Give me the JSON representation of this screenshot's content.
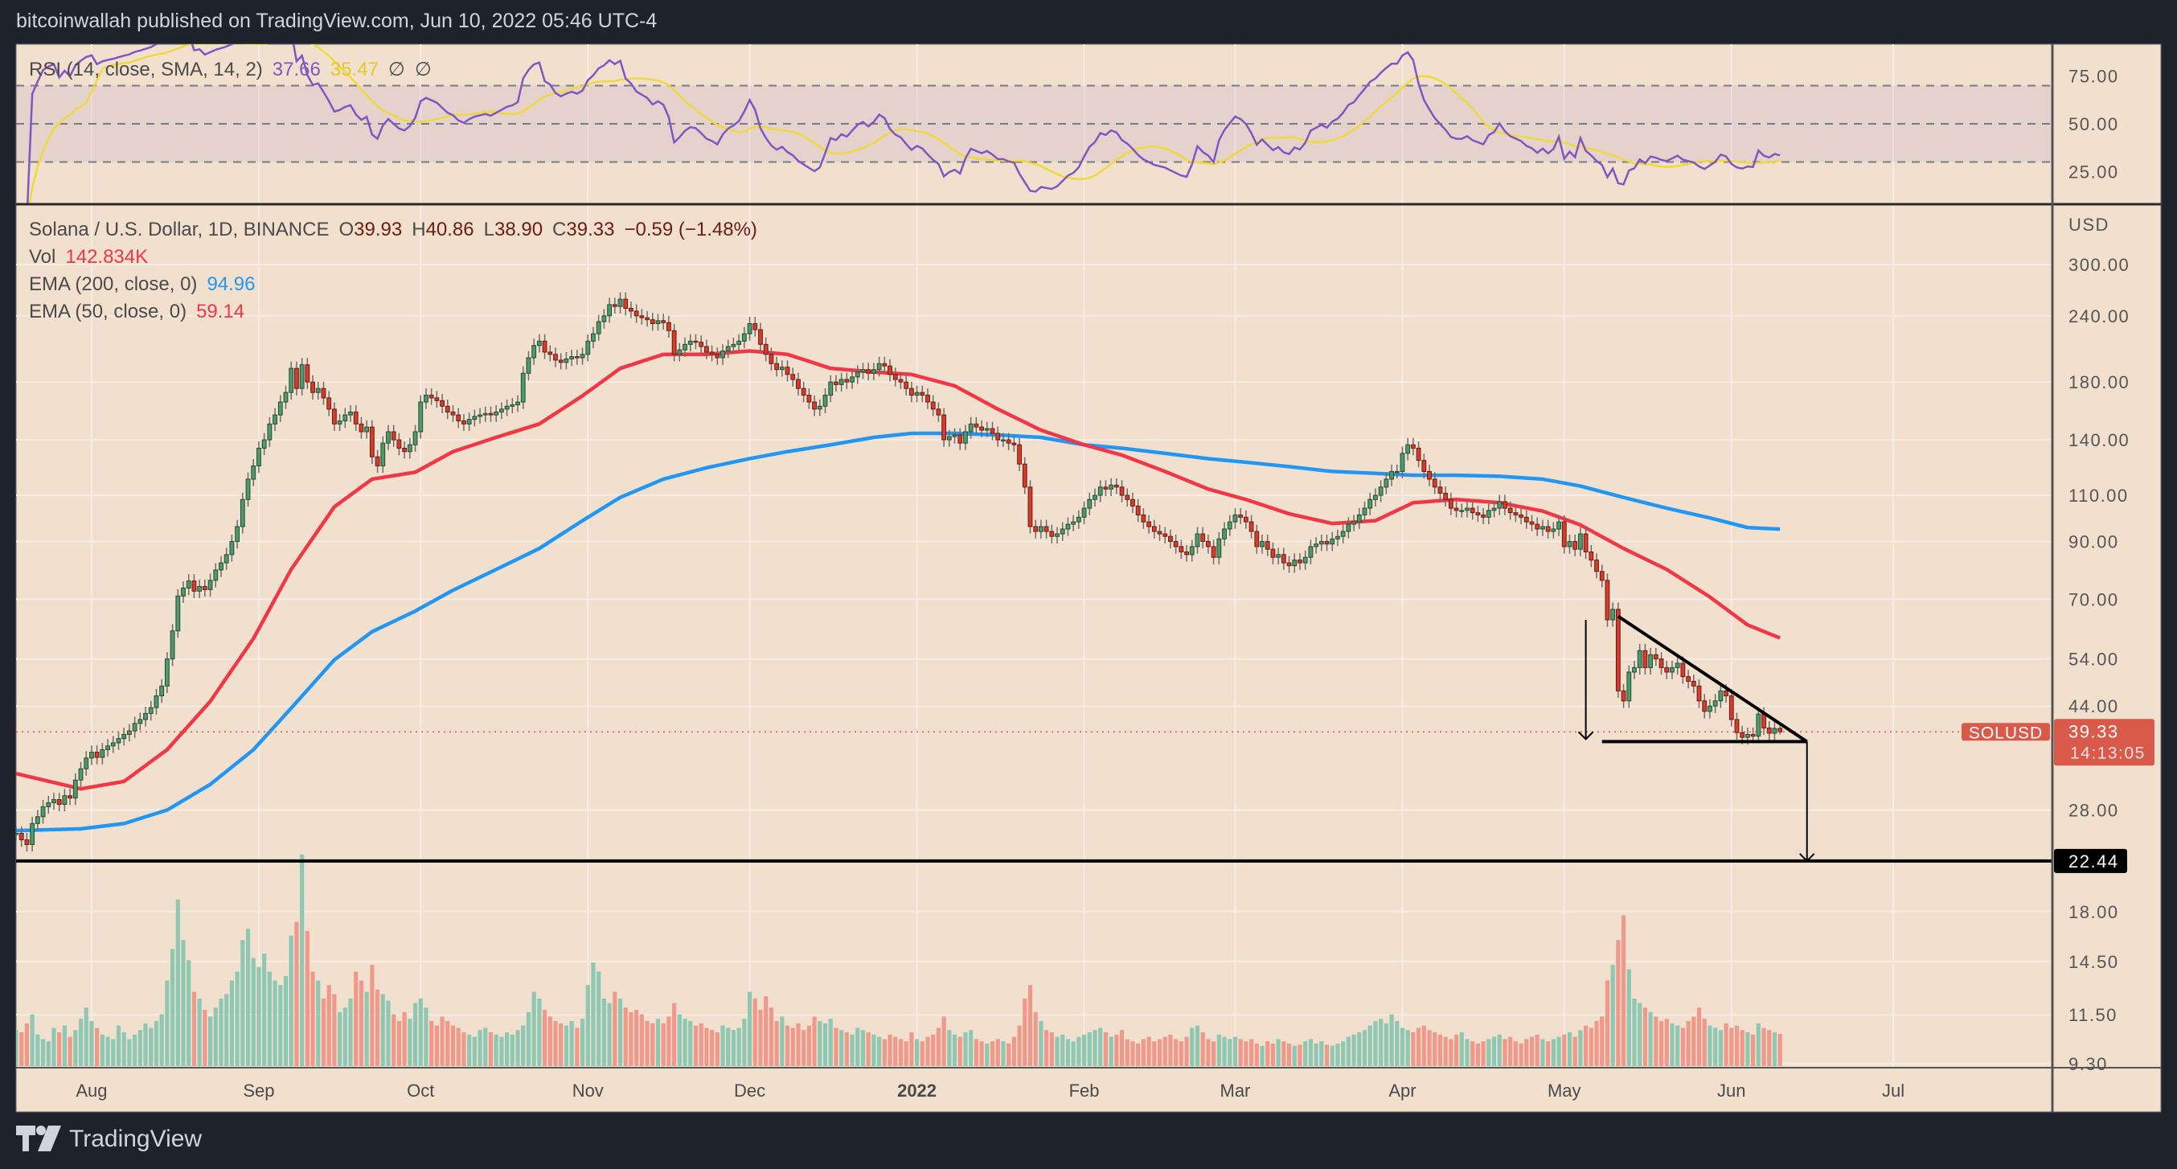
{
  "header": {
    "title": "bitcoinwallah published on TradingView.com, Jun 10, 2022 05:46 UTC-4"
  },
  "logo": {
    "text": "TradingView"
  },
  "rsi_legend": {
    "label": "RSI (14, close, SMA, 14, 2)",
    "rsi_value": "37.66",
    "sma_value": "35.47",
    "extra1": "∅",
    "extra2": "∅"
  },
  "main_legend": {
    "symbol": "Solana / U.S. Dollar, 1D, BINANCE",
    "o_label": "O",
    "o": "39.93",
    "h_label": "H",
    "h": "40.86",
    "l_label": "L",
    "l": "38.90",
    "c_label": "C",
    "c": "39.33",
    "change": "−0.59 (−1.48%)",
    "vol_label": "Vol",
    "vol_value": "142.834K",
    "ema200_label": "EMA (200, close, 0)",
    "ema200_value": "94.96",
    "ema50_label": "EMA (50, close, 0)",
    "ema50_value": "59.14"
  },
  "colors": {
    "background": "#f2e0cf",
    "frame": "#1e222d",
    "up": "#4f9a6a",
    "down": "#d43c2e",
    "vol_up": "#8ec8b2",
    "vol_down": "#f0998b",
    "ema50": "#f23645",
    "ema200": "#2196f3",
    "rsi": "#7e57c2",
    "rsi_sma": "#f0d93a",
    "price_label": "#d9594a"
  },
  "chart_data": {
    "type": "candlestick",
    "symbol": "SOLUSD",
    "scale": "log",
    "grid": true,
    "price_axis": {
      "unit": "USD",
      "ticks": [
        "300.00",
        "240.00",
        "180.00",
        "140.00",
        "110.00",
        "90.00",
        "70.00",
        "54.00",
        "44.00",
        "28.00",
        "18.00",
        "14.50",
        "11.50",
        "9.30"
      ]
    },
    "rsi_axis": {
      "ticks": [
        "75.00",
        "50.00",
        "25.00"
      ],
      "bands": [
        70,
        50,
        30
      ]
    },
    "time_axis": {
      "labels": [
        {
          "label": "Aug",
          "date": "2021-08-01"
        },
        {
          "label": "Sep",
          "date": "2021-09-01"
        },
        {
          "label": "Oct",
          "date": "2021-10-01"
        },
        {
          "label": "Nov",
          "date": "2021-11-01"
        },
        {
          "label": "Dec",
          "date": "2021-12-01"
        },
        {
          "label": "2022",
          "date": "2022-01-01"
        },
        {
          "label": "Feb",
          "date": "2022-02-01"
        },
        {
          "label": "Mar",
          "date": "2022-03-01"
        },
        {
          "label": "Apr",
          "date": "2022-04-01"
        },
        {
          "label": "May",
          "date": "2022-05-01"
        },
        {
          "label": "Jun",
          "date": "2022-06-01"
        },
        {
          "label": "Jul",
          "date": "2022-07-01"
        }
      ]
    },
    "last": {
      "open": 39.93,
      "high": 40.86,
      "low": 38.9,
      "close": 39.33,
      "label": "SOLUSD",
      "price_text": "39.33",
      "countdown": "14:13:05"
    },
    "months": [
      {
        "month": "2021-07",
        "first_day": 18,
        "close": [
          25.3,
          24.6,
          24.1,
          26.4,
          27.2,
          28.4,
          28.9,
          29.3,
          28.7,
          29.8,
          29.5,
          31.9,
          33.5,
          35.1
        ],
        "volume_k": [
          160,
          150,
          190,
          230,
          140,
          120,
          110,
          170,
          150,
          180,
          130,
          160,
          210,
          260
        ]
      },
      {
        "month": "2021-08",
        "first_day": 1,
        "close": [
          36.0,
          35.2,
          36.4,
          37.0,
          37.5,
          38.2,
          38.9,
          39.5,
          40.8,
          41.5,
          42.6,
          43.7,
          46.0,
          48.0,
          54.0,
          61.0,
          71.0,
          73.5,
          75.8,
          72.5,
          74.0,
          73.0,
          76.0,
          79.5,
          82.0,
          85.0,
          90.0,
          96.0,
          108.0,
          118.0,
          125.0
        ],
        "volume_k": [
          200,
          170,
          140,
          130,
          120,
          180,
          150,
          120,
          140,
          160,
          190,
          170,
          200,
          230,
          380,
          520,
          740,
          560,
          470,
          330,
          300,
          250,
          220,
          260,
          300,
          320,
          380,
          420,
          560,
          610,
          480
        ]
      },
      {
        "month": "2021-09",
        "first_day": 1,
        "close": [
          135,
          140,
          150,
          156,
          165,
          172,
          191,
          175,
          194,
          180,
          172,
          175,
          168,
          160,
          150,
          152,
          156,
          158,
          150,
          145,
          148,
          130,
          125,
          138,
          145,
          140,
          135,
          133,
          137,
          145
        ],
        "volume_k": [
          440,
          500,
          420,
          380,
          360,
          400,
          580,
          640,
          940,
          600,
          420,
          380,
          300,
          360,
          320,
          240,
          260,
          300,
          420,
          380,
          330,
          450,
          340,
          320,
          290,
          230,
          200,
          240,
          210,
          280
        ]
      },
      {
        "month": "2021-10",
        "first_day": 1,
        "close": [
          165,
          170,
          168,
          166,
          162,
          158,
          156,
          152,
          150,
          153,
          155,
          156,
          157,
          156,
          158,
          160,
          162,
          163,
          165,
          187,
          200,
          211,
          215,
          205,
          203,
          198,
          196,
          199,
          201,
          200,
          203
        ],
        "volume_k": [
          300,
          260,
          200,
          180,
          220,
          200,
          180,
          170,
          150,
          140,
          130,
          160,
          170,
          150,
          140,
          130,
          150,
          140,
          160,
          180,
          240,
          330,
          300,
          250,
          220,
          200,
          190,
          180,
          200,
          170,
          210
        ]
      },
      {
        "month": "2021-11",
        "first_day": 1,
        "close": [
          215,
          222,
          234,
          240,
          252,
          250,
          258,
          248,
          245,
          240,
          238,
          236,
          232,
          235,
          233,
          225,
          203,
          207,
          212,
          215,
          214,
          210,
          205,
          203,
          200,
          206,
          210,
          212,
          215,
          222
        ],
        "volume_k": [
          360,
          460,
          420,
          300,
          280,
          330,
          300,
          260,
          240,
          250,
          230,
          200,
          190,
          210,
          190,
          220,
          280,
          230,
          210,
          200,
          180,
          190,
          170,
          160,
          150,
          180,
          170,
          160,
          170,
          210
        ]
      },
      {
        "month": "2021-12",
        "first_day": 1,
        "close": [
          232,
          226,
          212,
          203,
          195,
          190,
          192,
          186,
          182,
          175,
          170,
          165,
          160,
          162,
          170,
          180,
          178,
          182,
          180,
          184,
          188,
          190,
          187,
          190,
          195,
          193,
          186,
          182,
          180,
          175,
          170
        ],
        "volume_k": [
          330,
          300,
          250,
          310,
          260,
          200,
          220,
          180,
          170,
          190,
          160,
          180,
          220,
          200,
          190,
          210,
          170,
          160,
          150,
          140,
          170,
          160,
          150,
          140,
          130,
          120,
          140,
          130,
          120,
          110,
          150
        ]
      },
      {
        "month": "2022-01",
        "first_day": 1,
        "close": [
          172,
          170,
          165,
          160,
          156,
          140,
          142,
          143,
          138,
          145,
          150,
          148,
          146,
          147,
          144,
          140,
          140,
          138,
          137,
          126,
          114,
          96,
          94,
          96,
          94,
          92,
          93,
          95,
          97,
          98,
          100
        ],
        "volume_k": [
          120,
          110,
          130,
          140,
          170,
          220,
          160,
          140,
          130,
          150,
          160,
          120,
          110,
          100,
          110,
          120,
          110,
          100,
          130,
          180,
          300,
          360,
          240,
          200,
          160,
          150,
          130,
          140,
          120,
          110,
          130
        ]
      },
      {
        "month": "2022-02",
        "first_day": 1,
        "close": [
          104,
          108,
          110,
          114,
          113,
          115,
          114,
          110,
          108,
          105,
          101,
          98,
          96,
          94,
          93,
          92,
          90,
          88,
          86,
          85,
          88,
          93,
          90,
          88,
          84,
          91,
          95,
          98
        ],
        "volume_k": [
          140,
          150,
          160,
          170,
          150,
          130,
          140,
          160,
          120,
          110,
          100,
          120,
          130,
          110,
          120,
          130,
          140,
          120,
          110,
          130,
          170,
          180,
          150,
          120,
          110,
          140,
          130,
          120
        ]
      },
      {
        "month": "2022-03",
        "first_day": 1,
        "close": [
          101,
          100,
          98,
          94,
          88,
          90,
          87,
          84,
          85,
          82,
          81,
          83,
          82,
          84,
          88,
          89,
          90,
          89,
          91,
          92,
          94,
          97,
          98,
          101,
          104,
          108,
          110,
          114,
          118,
          122,
          122
        ],
        "volume_k": [
          130,
          120,
          110,
          120,
          100,
          90,
          110,
          100,
          120,
          110,
          100,
          90,
          95,
          110,
          120,
          100,
          110,
          95,
          90,
          100,
          110,
          130,
          140,
          150,
          160,
          180,
          200,
          210,
          190,
          230,
          200
        ]
      },
      {
        "month": "2022-04",
        "first_day": 1,
        "close": [
          132,
          137,
          135,
          128,
          122,
          118,
          114,
          111,
          108,
          104,
          103,
          103,
          104,
          102,
          101,
          100,
          103,
          104,
          107,
          104,
          102,
          101,
          100,
          98,
          97,
          95,
          96,
          94,
          95,
          98
        ],
        "volume_k": [
          170,
          160,
          150,
          170,
          180,
          160,
          150,
          140,
          130,
          120,
          140,
          150,
          120,
          110,
          100,
          110,
          120,
          130,
          140,
          120,
          130,
          110,
          100,
          120,
          130,
          140,
          120,
          110,
          120,
          130
        ]
      },
      {
        "month": "2022-05",
        "first_day": 1,
        "close": [
          88,
          90,
          87,
          93,
          86,
          83,
          79,
          76,
          64,
          67,
          47,
          45,
          51,
          52,
          56,
          52,
          55,
          54,
          52,
          51,
          52,
          53,
          50,
          49,
          48,
          45,
          43,
          44,
          45,
          47,
          46
        ],
        "volume_k": [
          140,
          150,
          130,
          160,
          180,
          170,
          200,
          220,
          380,
          450,
          560,
          670,
          430,
          300,
          280,
          260,
          240,
          220,
          200,
          210,
          190,
          180,
          170,
          200,
          220,
          260,
          210,
          180,
          170,
          160,
          190
        ]
      },
      {
        "month": "2022-06",
        "first_day": 1,
        "close": [
          41.5,
          39.2,
          38.4,
          38.9,
          38.6,
          42.5,
          40.0,
          39.1,
          39.93,
          39.33
        ],
        "volume_k": [
          170,
          180,
          160,
          150,
          140,
          190,
          170,
          160,
          150,
          142.834
        ]
      }
    ],
    "ema50": [
      [
        "2021-07-18",
        32.8
      ],
      [
        "2021-07-30",
        30.7
      ],
      [
        "2021-08-07",
        31.7
      ],
      [
        "2021-08-15",
        36.4
      ],
      [
        "2021-08-23",
        44.9
      ],
      [
        "2021-08-31",
        59.0
      ],
      [
        "2021-09-07",
        79.7
      ],
      [
        "2021-09-15",
        104.6
      ],
      [
        "2021-09-22",
        118
      ],
      [
        "2021-09-30",
        121.6
      ],
      [
        "2021-10-07",
        133
      ],
      [
        "2021-10-15",
        141.5
      ],
      [
        "2021-10-23",
        150
      ],
      [
        "2021-10-31",
        169.5
      ],
      [
        "2021-11-07",
        191
      ],
      [
        "2021-11-15",
        203
      ],
      [
        "2021-11-23",
        203
      ],
      [
        "2021-12-01",
        206
      ],
      [
        "2021-12-08",
        203
      ],
      [
        "2021-12-16",
        191
      ],
      [
        "2021-12-24",
        188
      ],
      [
        "2021-12-31",
        186
      ],
      [
        "2022-01-08",
        177
      ],
      [
        "2022-01-16",
        160
      ],
      [
        "2022-01-24",
        146
      ],
      [
        "2022-02-01",
        137
      ],
      [
        "2022-02-08",
        131
      ],
      [
        "2022-02-16",
        122
      ],
      [
        "2022-02-24",
        113
      ],
      [
        "2022-03-03",
        108
      ],
      [
        "2022-03-11",
        101.5
      ],
      [
        "2022-03-19",
        97.3
      ],
      [
        "2022-03-27",
        98.5
      ],
      [
        "2022-04-03",
        106.5
      ],
      [
        "2022-04-11",
        108
      ],
      [
        "2022-04-19",
        106.5
      ],
      [
        "2022-04-27",
        102.7
      ],
      [
        "2022-05-04",
        96.7
      ],
      [
        "2022-05-12",
        87.3
      ],
      [
        "2022-05-20",
        79.7
      ],
      [
        "2022-05-28",
        70.7
      ],
      [
        "2022-06-04",
        62.6
      ],
      [
        "2022-06-10",
        59.14
      ]
    ],
    "ema200": [
      [
        "2021-07-18",
        25.6
      ],
      [
        "2021-07-30",
        25.8
      ],
      [
        "2021-08-07",
        26.4
      ],
      [
        "2021-08-15",
        28.0
      ],
      [
        "2021-08-23",
        31.3
      ],
      [
        "2021-08-31",
        36.4
      ],
      [
        "2021-09-07",
        43.6
      ],
      [
        "2021-09-15",
        53.8
      ],
      [
        "2021-09-22",
        60.8
      ],
      [
        "2021-09-30",
        66.5
      ],
      [
        "2021-10-07",
        72.8
      ],
      [
        "2021-10-15",
        79.7
      ],
      [
        "2021-10-23",
        87.3
      ],
      [
        "2021-10-31",
        98.5
      ],
      [
        "2021-11-07",
        109
      ],
      [
        "2021-11-15",
        118
      ],
      [
        "2021-11-23",
        124
      ],
      [
        "2021-12-01",
        129
      ],
      [
        "2021-12-08",
        133
      ],
      [
        "2021-12-16",
        137
      ],
      [
        "2021-12-24",
        141.5
      ],
      [
        "2021-12-31",
        144
      ],
      [
        "2022-01-08",
        144
      ],
      [
        "2022-01-16",
        143
      ],
      [
        "2022-01-24",
        141.5
      ],
      [
        "2022-02-01",
        137
      ],
      [
        "2022-02-08",
        135
      ],
      [
        "2022-02-16",
        132
      ],
      [
        "2022-02-24",
        129
      ],
      [
        "2022-03-03",
        127
      ],
      [
        "2022-03-11",
        124.6
      ],
      [
        "2022-03-19",
        122
      ],
      [
        "2022-03-27",
        121
      ],
      [
        "2022-04-03",
        120
      ],
      [
        "2022-04-11",
        120
      ],
      [
        "2022-04-19",
        119.5
      ],
      [
        "2022-04-27",
        118
      ],
      [
        "2022-05-04",
        114.5
      ],
      [
        "2022-05-12",
        109
      ],
      [
        "2022-05-20",
        104
      ],
      [
        "2022-05-28",
        99.7
      ],
      [
        "2022-06-04",
        95.6
      ],
      [
        "2022-06-10",
        94.96
      ]
    ],
    "drawings": {
      "horizontal_level": {
        "price": 22.44,
        "label": "22.44"
      },
      "triangle_support": {
        "from": "2022-05-08",
        "to": "2022-06-15",
        "price": 37.7
      },
      "triangle_resistance": {
        "from": "2022-05-11",
        "from_price": 65,
        "to": "2022-06-15",
        "to_price": 37.7
      },
      "measure_arrow": {
        "date": "2022-05-05",
        "from_price": 64,
        "to_price": 38.1
      },
      "target_arrow": {
        "date": "2022-06-15",
        "from_price": 37.7,
        "to_price": 22.44
      }
    }
  }
}
